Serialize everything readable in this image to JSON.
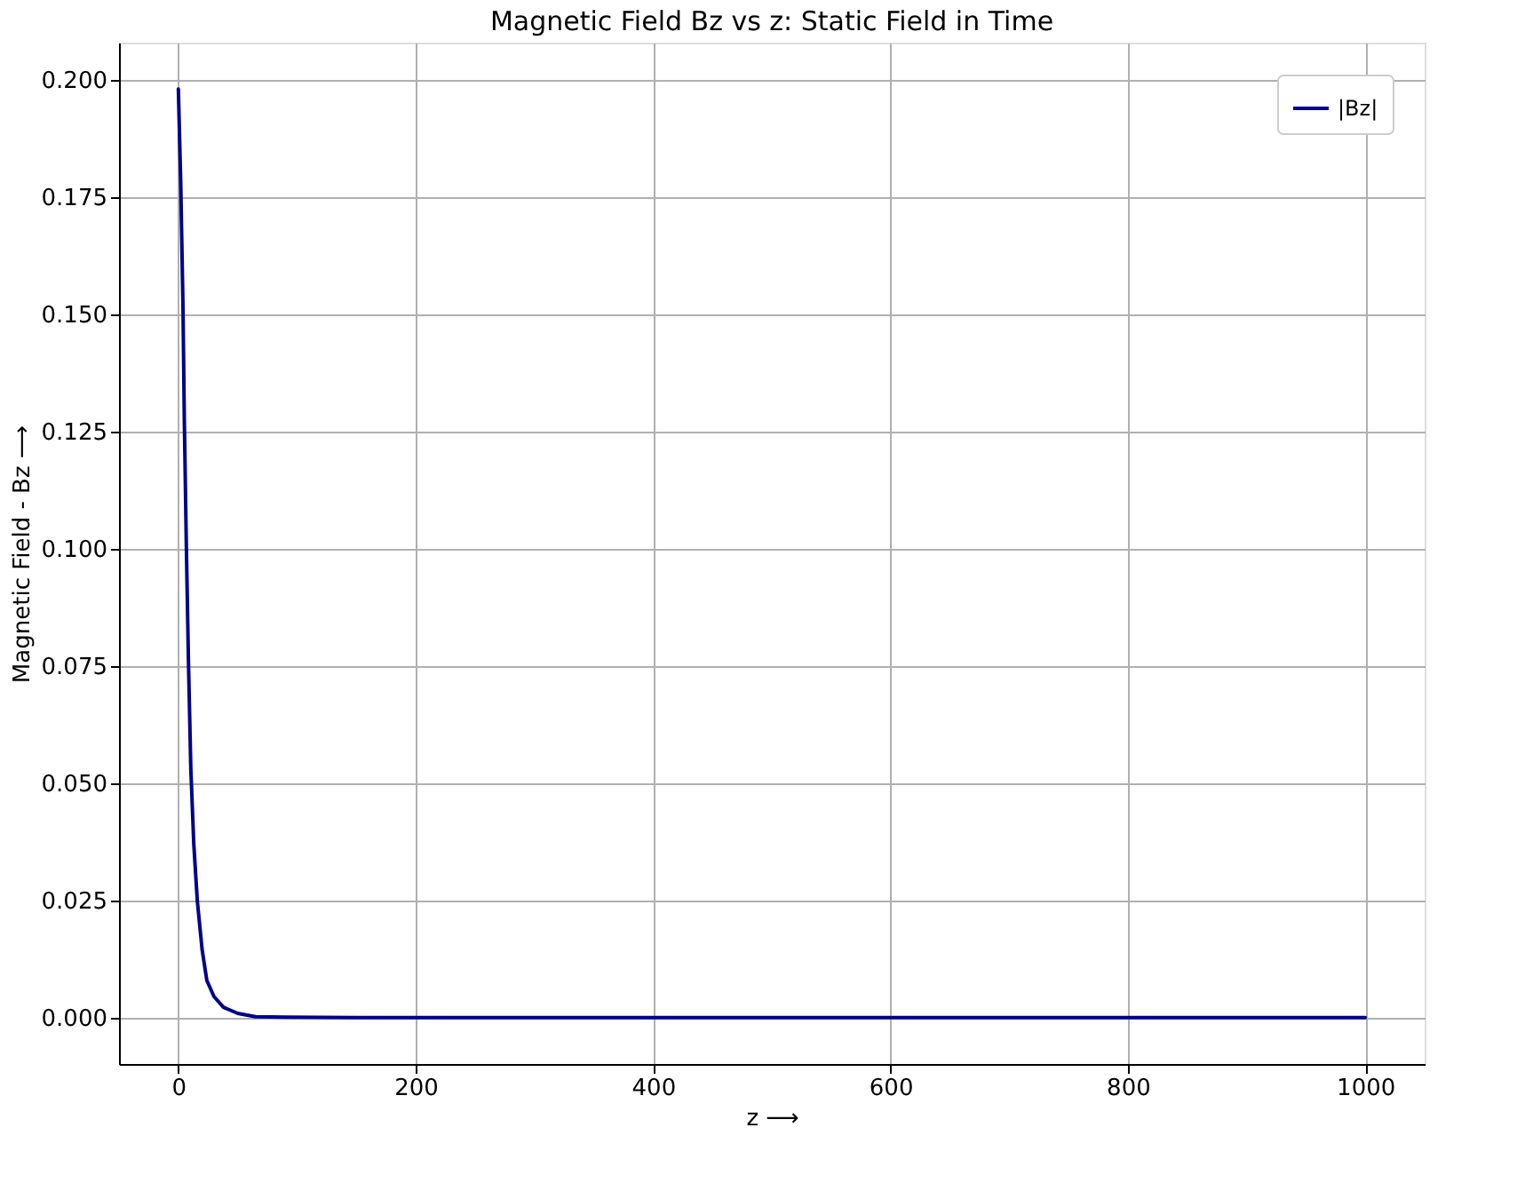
{
  "chart_data": {
    "type": "line",
    "title": "Magnetic Field Bz vs z: Static Field in Time",
    "xlabel": "z ⟶",
    "ylabel": "Magnetic Field - Bz ⟶",
    "x": [
      0,
      2,
      3.9,
      5,
      6.7,
      8.5,
      10.5,
      13,
      16,
      20,
      24,
      30,
      38,
      50,
      65,
      90,
      150,
      300,
      500,
      700,
      1000
    ],
    "series": [
      {
        "name": "|Bz|",
        "color": "#00008b",
        "values": [
          0.198,
          0.178,
          0.1515,
          0.128,
          0.101,
          0.076,
          0.053,
          0.037,
          0.0248,
          0.0145,
          0.0079,
          0.0045,
          0.0022,
          0.0009,
          0.0002,
          0.0001,
          0.0,
          0.0,
          0.0,
          0.0,
          0.0
        ]
      }
    ],
    "xlim": [
      -50,
      1050
    ],
    "xticks": [
      0,
      200,
      400,
      600,
      800,
      1000
    ],
    "ylim": [
      -0.0099,
      0.2079
    ],
    "yticks": [
      {
        "value": 0,
        "label": "0.000"
      },
      {
        "value": 0.025,
        "label": "0.025"
      },
      {
        "value": 0.05,
        "label": "0.050"
      },
      {
        "value": 0.075,
        "label": "0.075"
      },
      {
        "value": 0.1,
        "label": "0.100"
      },
      {
        "value": 0.125,
        "label": "0.125"
      },
      {
        "value": 0.15,
        "label": "0.150"
      },
      {
        "value": 0.175,
        "label": "0.175"
      },
      {
        "value": 0.2,
        "label": "0.200"
      }
    ],
    "grid": true,
    "legend": "top right",
    "marker": "none",
    "line_style": "solid"
  }
}
